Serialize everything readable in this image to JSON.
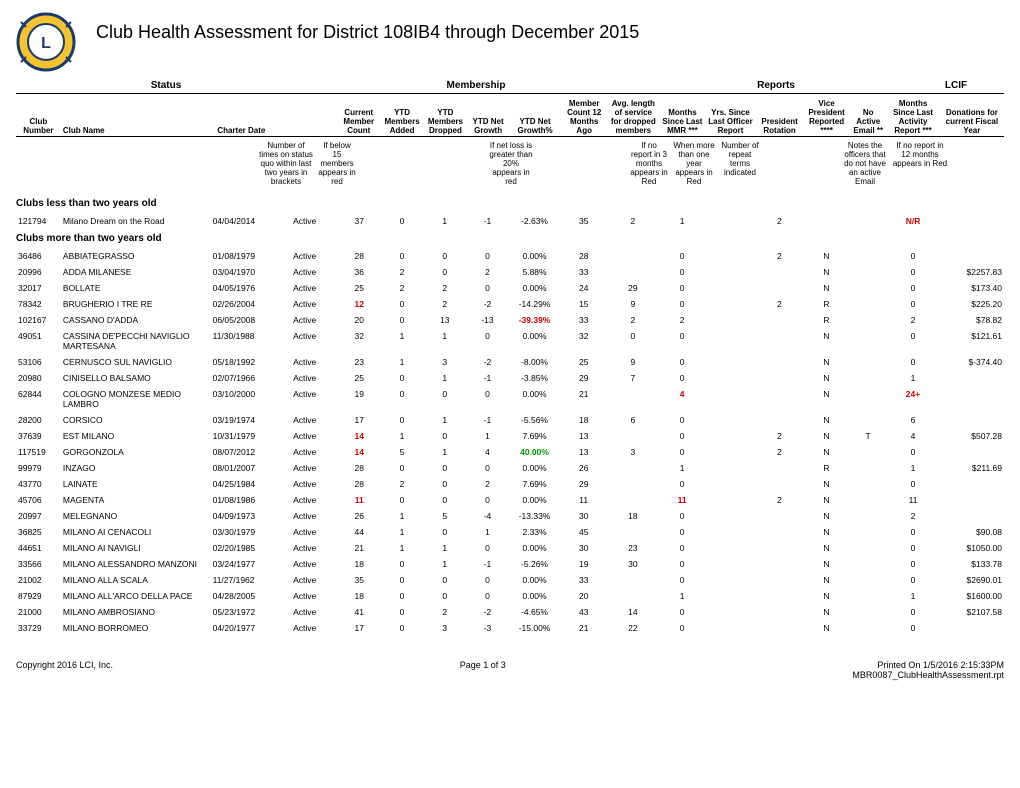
{
  "title": "Club Health Assessment for District 108IB4 through December 2015",
  "group_headers": {
    "status": "Status",
    "membership": "Membership",
    "reports": "Reports",
    "lcif": "LCIF"
  },
  "col_headers": {
    "club_number": "Club Number",
    "club_name": "Club Name",
    "charter_date": "Charter Date",
    "blank": "",
    "current_member_count": "Current Member Count",
    "ytd_members_added": "YTD Members Added",
    "ytd_members_dropped": "YTD Members Dropped",
    "ytd_net_growth": "YTD Net Growth",
    "ytd_net_growth_pct": "YTD Net Growth%",
    "member_count_12mo": "Member Count 12 Months Ago",
    "avg_length": "Avg. length of service for dropped members",
    "months_since_last_mmr": "Months Since Last MMR ***",
    "yrs_since_last_officer": "Yrs. Since Last Officer Report",
    "president_rotation": "President Rotation",
    "vp_reported": "Vice President Reported ****",
    "no_active_email": "No Active Email **",
    "months_since_activity": "Months Since Last Activity Report ***",
    "donations": "Donations for current Fiscal Year"
  },
  "notes": {
    "status_quo": "Number of times on status quo within last two years in brackets",
    "below15": "If below 15 members appears in red",
    "netloss": "If net loss is greater than 20% appears in red",
    "noreport": "If no report in 3 months appears in Red",
    "when": "When more than one year appears in Red",
    "repeat": "Number of repeat terms indicated",
    "officers": "Notes the officers that do not have an active Email",
    "noreport12": "If no report in 12 months appears in Red"
  },
  "sections": {
    "less_than_two": "Clubs less than two years old",
    "more_than_two": "Clubs more than two years old"
  },
  "col_widths": {
    "club_number": 42,
    "club_name": 140,
    "charter_date": 58,
    "status": 60,
    "current": 42,
    "added": 38,
    "dropped": 42,
    "growth": 38,
    "growth_pct": 50,
    "count12": 42,
    "avg_len": 50,
    "months_mmr": 42,
    "yrs_officer": 48,
    "pres_rot": 44,
    "vp": 44,
    "no_email": 34,
    "months_act": 50,
    "donations": 60
  },
  "clubs_young": [
    {
      "num": "121794",
      "name": "Milano Dream on the Road",
      "charter": "04/04/2014",
      "status": "Active",
      "current": "37",
      "added": "0",
      "dropped": "1",
      "growth": "-1",
      "growth_pct": "-2.63%",
      "count12": "35",
      "avg": "2",
      "mmr": "1",
      "yrs": "",
      "pres": "2",
      "vp": "",
      "email": "",
      "activity": "N/R",
      "activity_red": true,
      "don": ""
    }
  ],
  "clubs_old": [
    {
      "num": "36486",
      "name": "ABBIATEGRASSO",
      "charter": "01/08/1979",
      "status": "Active",
      "current": "28",
      "added": "0",
      "dropped": "0",
      "growth": "0",
      "growth_pct": "0.00%",
      "count12": "28",
      "avg": "",
      "mmr": "0",
      "yrs": "",
      "pres": "2",
      "vp": "N",
      "email": "",
      "activity": "0",
      "don": ""
    },
    {
      "num": "20996",
      "name": "ADDA MILANESE",
      "charter": "03/04/1970",
      "status": "Active",
      "current": "36",
      "added": "2",
      "dropped": "0",
      "growth": "2",
      "growth_pct": "5.88%",
      "count12": "33",
      "avg": "",
      "mmr": "0",
      "yrs": "",
      "pres": "",
      "vp": "N",
      "email": "",
      "activity": "0",
      "don": "$2257.83"
    },
    {
      "num": "32017",
      "name": "BOLLATE",
      "charter": "04/05/1976",
      "status": "Active",
      "current": "25",
      "added": "2",
      "dropped": "2",
      "growth": "0",
      "growth_pct": "0.00%",
      "count12": "24",
      "avg": "29",
      "mmr": "0",
      "yrs": "",
      "pres": "",
      "vp": "N",
      "email": "",
      "activity": "0",
      "don": "$173.40"
    },
    {
      "num": "78342",
      "name": "BRUGHERIO I TRE RE",
      "charter": "02/26/2004",
      "status": "Active",
      "current": "12",
      "current_red": true,
      "added": "0",
      "dropped": "2",
      "growth": "-2",
      "growth_pct": "-14.29%",
      "count12": "15",
      "avg": "9",
      "mmr": "0",
      "yrs": "",
      "pres": "2",
      "vp": "R",
      "email": "",
      "activity": "0",
      "don": "$225.20"
    },
    {
      "num": "102167",
      "name": "CASSANO D'ADDA",
      "charter": "06/05/2008",
      "status": "Active",
      "current": "20",
      "added": "0",
      "dropped": "13",
      "growth": "-13",
      "growth_pct": "-39.39%",
      "growth_pct_red": true,
      "count12": "33",
      "avg": "2",
      "mmr": "2",
      "yrs": "",
      "pres": "",
      "vp": "R",
      "email": "",
      "activity": "2",
      "don": "$78.82"
    },
    {
      "num": "49051",
      "name": "CASSINA DE'PECCHI NAVIGLIO MARTESANA",
      "charter": "11/30/1988",
      "status": "Active",
      "current": "32",
      "added": "1",
      "dropped": "1",
      "growth": "0",
      "growth_pct": "0.00%",
      "count12": "32",
      "avg": "0",
      "mmr": "0",
      "yrs": "",
      "pres": "",
      "vp": "N",
      "email": "",
      "activity": "0",
      "don": "$121.61"
    },
    {
      "num": "53106",
      "name": "CERNUSCO SUL NAVIGLIO",
      "charter": "05/18/1992",
      "status": "Active",
      "current": "23",
      "added": "1",
      "dropped": "3",
      "growth": "-2",
      "growth_pct": "-8.00%",
      "count12": "25",
      "avg": "9",
      "mmr": "0",
      "yrs": "",
      "pres": "",
      "vp": "N",
      "email": "",
      "activity": "0",
      "don": "$-374.40"
    },
    {
      "num": "20980",
      "name": "CINISELLO BALSAMO",
      "charter": "02/07/1966",
      "status": "Active",
      "current": "25",
      "added": "0",
      "dropped": "1",
      "growth": "-1",
      "growth_pct": "-3.85%",
      "count12": "29",
      "avg": "7",
      "mmr": "0",
      "yrs": "",
      "pres": "",
      "vp": "N",
      "email": "",
      "activity": "1",
      "don": ""
    },
    {
      "num": "62844",
      "name": "COLOGNO MONZESE MEDIO LAMBRO",
      "charter": "03/10/2000",
      "status": "Active",
      "current": "19",
      "added": "0",
      "dropped": "0",
      "growth": "0",
      "growth_pct": "0.00%",
      "count12": "21",
      "avg": "",
      "mmr": "4",
      "mmr_red": true,
      "yrs": "",
      "pres": "",
      "vp": "N",
      "email": "",
      "activity": "24+",
      "activity_red": true,
      "don": ""
    },
    {
      "num": "28200",
      "name": "CORSICO",
      "charter": "03/19/1974",
      "status": "Active",
      "current": "17",
      "added": "0",
      "dropped": "1",
      "growth": "-1",
      "growth_pct": "-5.56%",
      "count12": "18",
      "avg": "6",
      "mmr": "0",
      "yrs": "",
      "pres": "",
      "vp": "N",
      "email": "",
      "activity": "6",
      "don": ""
    },
    {
      "num": "37639",
      "name": "EST MILANO",
      "charter": "10/31/1979",
      "status": "Active",
      "current": "14",
      "current_red": true,
      "added": "1",
      "dropped": "0",
      "growth": "1",
      "growth_pct": "7.69%",
      "count12": "13",
      "avg": "",
      "mmr": "0",
      "yrs": "",
      "pres": "2",
      "vp": "N",
      "email": "T",
      "activity": "4",
      "don": "$507.28"
    },
    {
      "num": "117519",
      "name": "GORGONZOLA",
      "charter": "08/07/2012",
      "status": "Active",
      "current": "14",
      "current_red": true,
      "added": "5",
      "dropped": "1",
      "growth": "4",
      "growth_pct": "40.00%",
      "growth_pct_green": true,
      "count12": "13",
      "avg": "3",
      "mmr": "0",
      "yrs": "",
      "pres": "2",
      "vp": "N",
      "email": "",
      "activity": "0",
      "don": ""
    },
    {
      "num": "99979",
      "name": "INZAGO",
      "charter": "08/01/2007",
      "status": "Active",
      "current": "28",
      "added": "0",
      "dropped": "0",
      "growth": "0",
      "growth_pct": "0.00%",
      "count12": "26",
      "avg": "",
      "mmr": "1",
      "yrs": "",
      "pres": "",
      "vp": "R",
      "email": "",
      "activity": "1",
      "don": "$211.69"
    },
    {
      "num": "43770",
      "name": "LAINATE",
      "charter": "04/25/1984",
      "status": "Active",
      "current": "28",
      "added": "2",
      "dropped": "0",
      "growth": "2",
      "growth_pct": "7.69%",
      "count12": "29",
      "avg": "",
      "mmr": "0",
      "yrs": "",
      "pres": "",
      "vp": "N",
      "email": "",
      "activity": "0",
      "don": ""
    },
    {
      "num": "45706",
      "name": "MAGENTA",
      "charter": "01/08/1986",
      "status": "Active",
      "current": "11",
      "current_red": true,
      "added": "0",
      "dropped": "0",
      "growth": "0",
      "growth_pct": "0.00%",
      "count12": "11",
      "avg": "",
      "mmr": "11",
      "mmr_red": true,
      "yrs": "",
      "pres": "2",
      "vp": "N",
      "email": "",
      "activity": "11",
      "don": ""
    },
    {
      "num": "20997",
      "name": "MELEGNANO",
      "charter": "04/09/1973",
      "status": "Active",
      "current": "26",
      "added": "1",
      "dropped": "5",
      "growth": "-4",
      "growth_pct": "-13.33%",
      "count12": "30",
      "avg": "18",
      "mmr": "0",
      "yrs": "",
      "pres": "",
      "vp": "N",
      "email": "",
      "activity": "2",
      "don": ""
    },
    {
      "num": "36825",
      "name": "MILANO AI CENACOLI",
      "charter": "03/30/1979",
      "status": "Active",
      "current": "44",
      "added": "1",
      "dropped": "0",
      "growth": "1",
      "growth_pct": "2.33%",
      "count12": "45",
      "avg": "",
      "mmr": "0",
      "yrs": "",
      "pres": "",
      "vp": "N",
      "email": "",
      "activity": "0",
      "don": "$90.08"
    },
    {
      "num": "44651",
      "name": "MILANO AI NAVIGLI",
      "charter": "02/20/1985",
      "status": "Active",
      "current": "21",
      "added": "1",
      "dropped": "1",
      "growth": "0",
      "growth_pct": "0.00%",
      "count12": "30",
      "avg": "23",
      "mmr": "0",
      "yrs": "",
      "pres": "",
      "vp": "N",
      "email": "",
      "activity": "0",
      "don": "$1050.00"
    },
    {
      "num": "33566",
      "name": "MILANO ALESSANDRO MANZONI",
      "charter": "03/24/1977",
      "status": "Active",
      "current": "18",
      "added": "0",
      "dropped": "1",
      "growth": "-1",
      "growth_pct": "-5.26%",
      "count12": "19",
      "avg": "30",
      "mmr": "0",
      "yrs": "",
      "pres": "",
      "vp": "N",
      "email": "",
      "activity": "0",
      "don": "$133.78"
    },
    {
      "num": "21002",
      "name": "MILANO ALLA SCALA",
      "charter": "11/27/1962",
      "status": "Active",
      "current": "35",
      "added": "0",
      "dropped": "0",
      "growth": "0",
      "growth_pct": "0.00%",
      "count12": "33",
      "avg": "",
      "mmr": "0",
      "yrs": "",
      "pres": "",
      "vp": "N",
      "email": "",
      "activity": "0",
      "don": "$2690.01"
    },
    {
      "num": "87929",
      "name": "MILANO ALL'ARCO DELLA PACE",
      "charter": "04/28/2005",
      "status": "Active",
      "current": "18",
      "added": "0",
      "dropped": "0",
      "growth": "0",
      "growth_pct": "0.00%",
      "count12": "20",
      "avg": "",
      "mmr": "1",
      "yrs": "",
      "pres": "",
      "vp": "N",
      "email": "",
      "activity": "1",
      "don": "$1600.00"
    },
    {
      "num": "21000",
      "name": "MILANO AMBROSIANO",
      "charter": "05/23/1972",
      "status": "Active",
      "current": "41",
      "added": "0",
      "dropped": "2",
      "growth": "-2",
      "growth_pct": "-4.65%",
      "count12": "43",
      "avg": "14",
      "mmr": "0",
      "yrs": "",
      "pres": "",
      "vp": "N",
      "email": "",
      "activity": "0",
      "don": "$2107.58"
    },
    {
      "num": "33729",
      "name": "MILANO BORROMEO",
      "charter": "04/20/1977",
      "status": "Active",
      "current": "17",
      "added": "0",
      "dropped": "3",
      "growth": "-3",
      "growth_pct": "-15.00%",
      "count12": "21",
      "avg": "22",
      "mmr": "0",
      "yrs": "",
      "pres": "",
      "vp": "N",
      "email": "",
      "activity": "0",
      "don": ""
    }
  ],
  "footer": {
    "copyright": "Copyright 2016 LCI, Inc.",
    "page": "Page 1 of 3",
    "printed": "Printed On 1/5/2016 2:15:33PM",
    "report": "MBR0087_ClubHealthAssessment.rpt"
  },
  "colors": {
    "red": "#cc0000",
    "green": "#009900",
    "text": "#000000",
    "bg": "#ffffff"
  }
}
